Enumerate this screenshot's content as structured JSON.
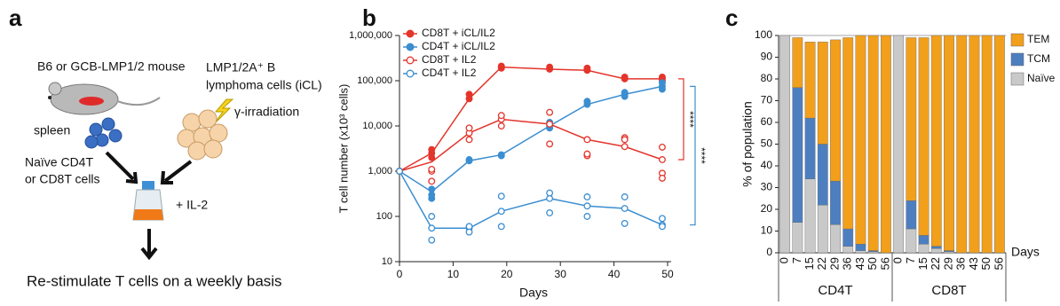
{
  "panel_labels": [
    "a",
    "b",
    "c"
  ],
  "panel_a": {
    "mouse": "B6 or GCB-LMP1/2 mouse",
    "lymphoma_line1": "LMP1/2A⁺ B",
    "lymphoma_line2": "lymphoma cells (iCL)",
    "spleen": "spleen",
    "irradiation": "γ-irradiation",
    "naive_line1": "Naïve CD4T",
    "naive_line2": "or CD8T cells",
    "il2": "+ IL-2",
    "restimulate": "Re-stimulate T cells on a weekly basis"
  },
  "chart_data": [
    {
      "type": "line",
      "log_scale": true,
      "legend": "upper-left",
      "x_label": "Days",
      "y_label": "T cell number (x10³ cells)",
      "x": [
        0,
        6,
        13,
        19,
        28,
        35,
        42,
        49
      ],
      "xlim": [
        0,
        50
      ],
      "xticks": [
        0,
        10,
        20,
        30,
        40,
        50
      ],
      "ylim": [
        10,
        1000000
      ],
      "yticks": [
        10,
        100,
        {
          "value": 1000,
          "label": "1,000"
        },
        {
          "value": 10000,
          "label": "10,000"
        },
        {
          "value": 100000,
          "label": "100,000"
        },
        {
          "value": 1000000,
          "label": "1,000,000"
        }
      ],
      "series": [
        {
          "name": "CD8T + iCL/IL2",
          "color": "#e4352b",
          "marker": "filled",
          "values": [
            1000,
            2500,
            40000,
            200000,
            180000,
            170000,
            110000,
            110000
          ],
          "replicates": [
            [
              1000
            ],
            [
              2500,
              3000,
              2000
            ],
            [
              40000,
              50000
            ],
            [
              200000,
              190000,
              210000
            ],
            [
              180000,
              200000
            ],
            [
              170000,
              190000
            ],
            [
              110000,
              120000
            ],
            [
              110000,
              100000,
              120000
            ]
          ]
        },
        {
          "name": "CD4T + iCL/IL2",
          "color": "#3b8ed0",
          "marker": "filled",
          "values": [
            1000,
            350,
            1700,
            2300,
            10000,
            30000,
            50000,
            75000
          ],
          "replicates": [
            [
              1000
            ],
            [
              300,
              400,
              250
            ],
            [
              1700,
              1800
            ],
            [
              2300,
              2200
            ],
            [
              10000,
              12000,
              9000
            ],
            [
              30000,
              35000
            ],
            [
              50000,
              45000,
              55000
            ],
            [
              75000,
              65000,
              90000
            ]
          ]
        },
        {
          "name": "CD8T + IL2",
          "color": "#e4352b",
          "marker": "open",
          "values": [
            1000,
            1600,
            7000,
            14000,
            11000,
            5000,
            3500,
            1800
          ],
          "replicates": [
            [
              1000
            ],
            [
              1000,
              1100,
              600
            ],
            [
              7000,
              9000,
              5000
            ],
            [
              14000,
              17000,
              10000
            ],
            [
              11000,
              20000,
              4000
            ],
            [
              5000,
              2200,
              2400
            ],
            [
              3500,
              5500,
              5000
            ],
            [
              1800,
              3400,
              900,
              700
            ]
          ]
        },
        {
          "name": "CD4T + IL2",
          "color": "#3b8ed0",
          "marker": "open",
          "values": [
            1000,
            55,
            55,
            130,
            250,
            170,
            150,
            65
          ],
          "replicates": [
            [
              1000
            ],
            [
              55,
              100,
              30
            ],
            [
              55,
              60,
              45
            ],
            [
              130,
              280,
              60
            ],
            [
              250,
              330,
              120
            ],
            [
              170,
              270,
              100
            ],
            [
              150,
              270,
              70
            ],
            [
              65,
              90,
              60
            ]
          ]
        }
      ],
      "annotations": [
        {
          "text": "****",
          "color": "#e4352b"
        },
        {
          "text": "****",
          "color": "#3b8ed0"
        }
      ]
    },
    {
      "type": "bar",
      "stacked": true,
      "legend": "upper-right",
      "x_label": "Days",
      "y_label": "% of population",
      "groups": [
        "CD4T",
        "CD8T"
      ],
      "categories": [
        "0",
        "7",
        "15",
        "22",
        "29",
        "36",
        "43",
        "50",
        "56",
        "0",
        "7",
        "15",
        "22",
        "29",
        "36",
        "43",
        "50",
        "56"
      ],
      "ylim": [
        0,
        100
      ],
      "yticks": [
        0,
        10,
        20,
        30,
        40,
        50,
        60,
        70,
        80,
        90,
        100
      ],
      "series": [
        {
          "name": "TEM",
          "color": "#f29f1c",
          "values": [
            0,
            23,
            35,
            47,
            65,
            88,
            96,
            99,
            100,
            0,
            75,
            91,
            97,
            99,
            100,
            100,
            100,
            100
          ]
        },
        {
          "name": "TCM",
          "color": "#4d7fc0",
          "values": [
            0,
            62,
            28,
            28,
            20,
            8,
            3,
            0.5,
            0,
            0,
            13,
            4,
            1,
            0.5,
            0,
            0,
            0,
            0
          ]
        },
        {
          "name": "Naïve",
          "color": "#c9c9c9",
          "values": [
            100,
            14,
            34,
            22,
            13,
            3,
            1,
            0.5,
            0,
            100,
            11,
            4,
            2,
            0.5,
            0,
            0,
            0,
            0
          ]
        }
      ]
    }
  ]
}
